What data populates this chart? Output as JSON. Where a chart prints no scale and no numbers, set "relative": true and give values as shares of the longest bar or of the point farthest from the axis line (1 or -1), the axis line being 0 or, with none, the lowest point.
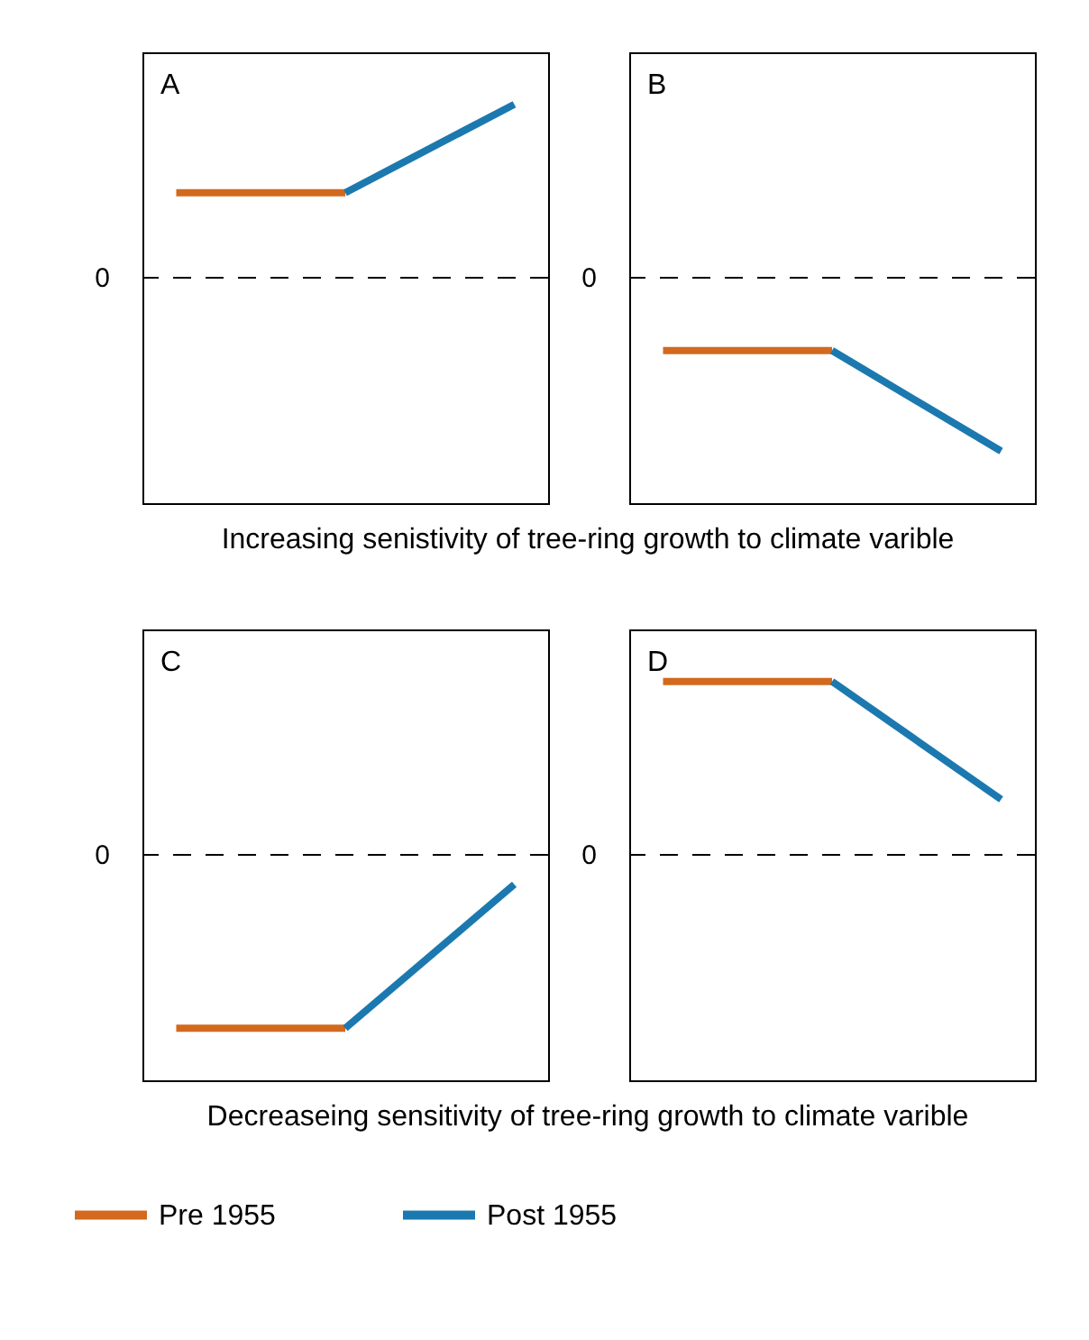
{
  "chart_data": [
    {
      "type": "line",
      "title": "A",
      "categories": [
        null,
        null,
        null
      ],
      "relative": true,
      "series": [
        {
          "color": "#d2691e",
          "values": [
            0.49,
            0.49,
            null
          ]
        },
        {
          "color": "#1b79b0",
          "values": [
            null,
            0.49,
            1
          ]
        }
      ],
      "ref_lines": [
        {
          "axis": "y",
          "value": 0,
          "label": "0",
          "line_style": "dashed"
        }
      ],
      "annotations": [
        "Increasing senistivity of tree-ring growth to climate varible"
      ]
    },
    {
      "type": "line",
      "title": "B",
      "categories": [
        null,
        null,
        null
      ],
      "relative": true,
      "series": [
        {
          "color": "#d2691e",
          "values": [
            -0.42,
            -0.42,
            null
          ]
        },
        {
          "color": "#1b79b0",
          "values": [
            null,
            -0.42,
            -1
          ]
        }
      ],
      "ref_lines": [
        {
          "axis": "y",
          "value": 0,
          "label": "0",
          "line_style": "dashed"
        }
      ]
    },
    {
      "type": "line",
      "title": "C",
      "categories": [
        null,
        null,
        null
      ],
      "relative": true,
      "legend": "bottom",
      "series": [
        {
          "name": "Pre 1955",
          "color": "#d2691e",
          "values": [
            -1,
            -1,
            null
          ]
        },
        {
          "name": "Post 1955",
          "color": "#1b79b0",
          "values": [
            null,
            -1,
            -0.17
          ]
        }
      ],
      "ref_lines": [
        {
          "axis": "y",
          "value": 0,
          "label": "0",
          "line_style": "dashed"
        }
      ],
      "annotations": [
        "Decreaseing sensitivity of tree-ring growth to climate varible"
      ]
    },
    {
      "type": "line",
      "title": "D",
      "categories": [
        null,
        null,
        null
      ],
      "relative": true,
      "series": [
        {
          "color": "#d2691e",
          "values": [
            1,
            1,
            null
          ]
        },
        {
          "color": "#1b79b0",
          "values": [
            null,
            1,
            0.32
          ]
        }
      ],
      "ref_lines": [
        {
          "axis": "y",
          "value": 0,
          "label": "0",
          "line_style": "dashed"
        }
      ]
    }
  ]
}
